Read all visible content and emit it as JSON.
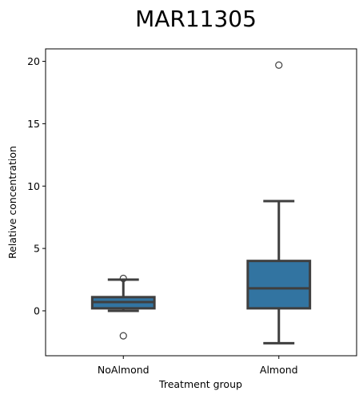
{
  "chart_data": {
    "type": "box",
    "title": "MAR11305",
    "xlabel": "Treatment group",
    "ylabel": "Relative concentration",
    "ylim": [
      -3.6,
      21.0
    ],
    "yticks": [
      0,
      5,
      10,
      15,
      20
    ],
    "grid": false,
    "legend": "none",
    "categories": [
      "NoAlmond",
      "Almond"
    ],
    "boxes": [
      {
        "category": "NoAlmond",
        "whisker_low": 0.0,
        "q1": 0.2,
        "median": 0.7,
        "q3": 1.1,
        "whisker_high": 2.5,
        "outliers": [
          2.6,
          -2.0
        ]
      },
      {
        "category": "Almond",
        "whisker_low": -2.6,
        "q1": 0.2,
        "median": 1.8,
        "q3": 4.0,
        "whisker_high": 8.8,
        "outliers": [
          19.7
        ]
      }
    ]
  },
  "colors": {
    "box_fill": "#3274a1",
    "line": "#3f3f3f",
    "axis": "#000000"
  }
}
